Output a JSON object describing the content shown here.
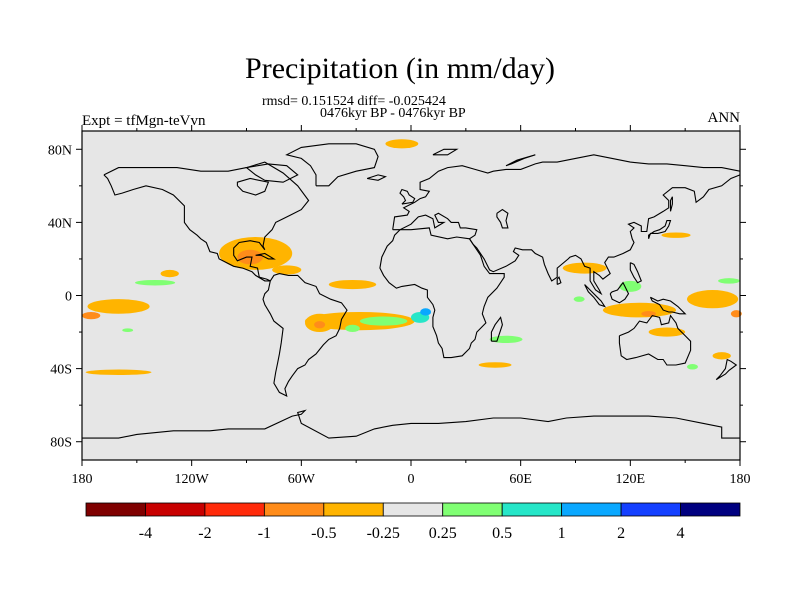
{
  "title": "Precipitation (in mm/day)",
  "stats_line": "rmsd= 0.151524 diff= -0.025424",
  "period_line": "0476kyr BP - 0476kyr BP",
  "experiment_label": "Expt = tfMgn-teVvn",
  "season_label": "ANN",
  "map": {
    "x_ticks": [
      "180",
      "120W",
      "60W",
      "0",
      "60E",
      "120E",
      "180"
    ],
    "y_ticks": [
      "80N",
      "40N",
      "0",
      "40S",
      "80S"
    ],
    "lon_range": [
      -180,
      180
    ],
    "lat_range": [
      -90,
      90
    ],
    "background_color": "#e6e6e6"
  },
  "colorbar": {
    "labels": [
      "-4",
      "-2",
      "-1",
      "-0.5",
      "-0.25",
      "0.25",
      "0.5",
      "1",
      "2",
      "4"
    ],
    "colors": [
      "#7f0000",
      "#c80000",
      "#ff2a0a",
      "#ff8c1a",
      "#ffb400",
      "#e6e6e6",
      "#80ff73",
      "#26e6c8",
      "#0aa8ff",
      "#1440ff",
      "#000080"
    ]
  },
  "anomaly_regions": [
    {
      "name": "arctic-north-atlantic",
      "color": "#ffb400",
      "lon": -5,
      "lat": 83,
      "w": 18,
      "h": 5
    },
    {
      "name": "gulf-of-mexico",
      "color": "#ffb400",
      "lon": -85,
      "lat": 23,
      "w": 40,
      "h": 18
    },
    {
      "name": "gulf-core",
      "color": "#ff8c1a",
      "lon": -88,
      "lat": 21,
      "w": 14,
      "h": 8
    },
    {
      "name": "caribbean-arm",
      "color": "#ffb400",
      "lon": -68,
      "lat": 14,
      "w": 16,
      "h": 5
    },
    {
      "name": "central-pacific-north",
      "color": "#ffb400",
      "lon": -132,
      "lat": 12,
      "w": 10,
      "h": 4
    },
    {
      "name": "central-pacific-green",
      "color": "#80ff73",
      "lon": -140,
      "lat": 7,
      "w": 22,
      "h": 3
    },
    {
      "name": "tropical-atlantic-north",
      "color": "#ffb400",
      "lon": -32,
      "lat": 6,
      "w": 26,
      "h": 5
    },
    {
      "name": "tropical-atlantic-south",
      "color": "#ffb400",
      "lon": -28,
      "lat": -14,
      "w": 60,
      "h": 10
    },
    {
      "name": "south-atlantic-west",
      "color": "#ffb400",
      "lon": -50,
      "lat": -15,
      "w": 16,
      "h": 10
    },
    {
      "name": "brazil-core",
      "color": "#ff8c1a",
      "lon": -50,
      "lat": -16,
      "w": 6,
      "h": 4
    },
    {
      "name": "atlantic-green",
      "color": "#80ff73",
      "lon": -15,
      "lat": -14,
      "w": 26,
      "h": 5
    },
    {
      "name": "atlantic-cyan",
      "color": "#26e6c8",
      "lon": 5,
      "lat": -12,
      "w": 10,
      "h": 6
    },
    {
      "name": "atlantic-blue",
      "color": "#0aa8ff",
      "lon": 8,
      "lat": -9,
      "w": 6,
      "h": 4
    },
    {
      "name": "west-africa-green",
      "color": "#80ff73",
      "lon": -32,
      "lat": -18,
      "w": 8,
      "h": 4
    },
    {
      "name": "east-pacific-orange",
      "color": "#ffb400",
      "lon": -160,
      "lat": -6,
      "w": 34,
      "h": 8
    },
    {
      "name": "east-pacific-core",
      "color": "#ff8c1a",
      "lon": -175,
      "lat": -11,
      "w": 10,
      "h": 4
    },
    {
      "name": "pacific-green",
      "color": "#80ff73",
      "lon": -155,
      "lat": -19,
      "w": 6,
      "h": 2
    },
    {
      "name": "south-pacific-orange",
      "color": "#ffb400",
      "lon": -160,
      "lat": -42,
      "w": 36,
      "h": 3
    },
    {
      "name": "east-africa-green",
      "color": "#80ff73",
      "lon": 52,
      "lat": -24,
      "w": 18,
      "h": 4
    },
    {
      "name": "madagascar-orange",
      "color": "#ffb400",
      "lon": 46,
      "lat": -38,
      "w": 18,
      "h": 3
    },
    {
      "name": "india-orange",
      "color": "#ffb400",
      "lon": 95,
      "lat": 15,
      "w": 24,
      "h": 6
    },
    {
      "name": "indonesia-orange",
      "color": "#ffb400",
      "lon": 125,
      "lat": -8,
      "w": 40,
      "h": 8
    },
    {
      "name": "indonesia-core",
      "color": "#ff8c1a",
      "lon": 130,
      "lat": -10,
      "w": 8,
      "h": 3
    },
    {
      "name": "west-pacific-orange",
      "color": "#ffb400",
      "lon": 165,
      "lat": -2,
      "w": 28,
      "h": 10
    },
    {
      "name": "dateline-core",
      "color": "#ff8c1a",
      "lon": 178,
      "lat": -10,
      "w": 6,
      "h": 4
    },
    {
      "name": "maritime-green",
      "color": "#80ff73",
      "lon": 120,
      "lat": 5,
      "w": 12,
      "h": 6
    },
    {
      "name": "south-pacific-orange-2",
      "color": "#ffb400",
      "lon": 140,
      "lat": -20,
      "w": 20,
      "h": 5
    },
    {
      "name": "australia-green",
      "color": "#80ff73",
      "lon": 154,
      "lat": -39,
      "w": 6,
      "h": 3
    },
    {
      "name": "tasman-orange",
      "color": "#ffb400",
      "lon": 170,
      "lat": -33,
      "w": 10,
      "h": 4
    },
    {
      "name": "japan-orange",
      "color": "#ffb400",
      "lon": 145,
      "lat": 33,
      "w": 16,
      "h": 3
    },
    {
      "name": "india-green",
      "color": "#80ff73",
      "lon": 92,
      "lat": -2,
      "w": 6,
      "h": 3
    },
    {
      "name": "north-pacific-green",
      "color": "#80ff73",
      "lon": 174,
      "lat": 8,
      "w": 12,
      "h": 3
    }
  ]
}
